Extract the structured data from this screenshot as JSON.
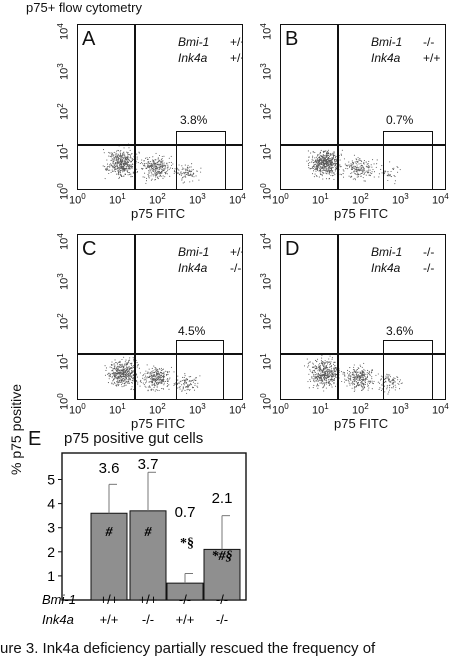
{
  "figure_title": "p75+ flow cytometry",
  "panels": [
    {
      "letter": "A",
      "bmi_label": "Bmi-1",
      "bmi_value": "+/+",
      "ink_label": "Ink4a",
      "ink_value": "+/+",
      "percent": "3.8%"
    },
    {
      "letter": "B",
      "bmi_label": "Bmi-1",
      "bmi_value": "-/-",
      "ink_label": "Ink4a",
      "ink_value": "+/+",
      "percent": "0.7%"
    },
    {
      "letter": "C",
      "bmi_label": "Bmi-1",
      "bmi_value": "+/+",
      "ink_label": "Ink4a",
      "ink_value": "-/-",
      "percent": "4.5%"
    },
    {
      "letter": "D",
      "bmi_label": "Bmi-1",
      "bmi_value": "-/-",
      "ink_label": "Ink4a",
      "ink_value": "-/-",
      "percent": "3.6%"
    }
  ],
  "flow_axes": {
    "xlabel": "p75 FITC",
    "tick_base": "10",
    "tick_exponents": [
      "0",
      "1",
      "2",
      "3",
      "4"
    ]
  },
  "bar_panel": {
    "letter": "E",
    "title": "p75 positive gut cells",
    "ylabel": "% p75 positive",
    "row_labels": [
      "Bmi-1",
      "Ink4a"
    ],
    "columns": [
      {
        "bmi": "+/+",
        "ink": "+/+"
      },
      {
        "bmi": "+/+",
        "ink": "-/-"
      },
      {
        "bmi": "-/-",
        "ink": "+/+"
      },
      {
        "bmi": "-/-",
        "ink": "-/-"
      }
    ],
    "value_labels": [
      "3.6",
      "3.7",
      "0.7",
      "2.1"
    ],
    "bar_marks": [
      "#",
      "#",
      "",
      "*#§"
    ],
    "above_marks": [
      "",
      "",
      "*§",
      ""
    ],
    "ytick_labels": [
      "1",
      "2",
      "3",
      "4",
      "5"
    ]
  },
  "chart_data": {
    "type": "bar",
    "title": "p75 positive gut cells",
    "ylabel": "% p75 positive",
    "xlabel": "",
    "categories": [
      "Bmi-1 +/+ Ink4a +/+",
      "Bmi-1 +/+ Ink4a -/-",
      "Bmi-1 -/- Ink4a +/+",
      "Bmi-1 -/- Ink4a -/-"
    ],
    "values": [
      3.6,
      3.7,
      0.7,
      2.1
    ],
    "error_upper": [
      4.8,
      5.3,
      1.1,
      3.5
    ],
    "ylim": [
      0,
      6.1
    ],
    "yticks": [
      1,
      2,
      3,
      4,
      5
    ],
    "bar_color": "#8f8f8f"
  },
  "caption": "ure 3.  Ink4a deficiency partially rescued the frequency of"
}
